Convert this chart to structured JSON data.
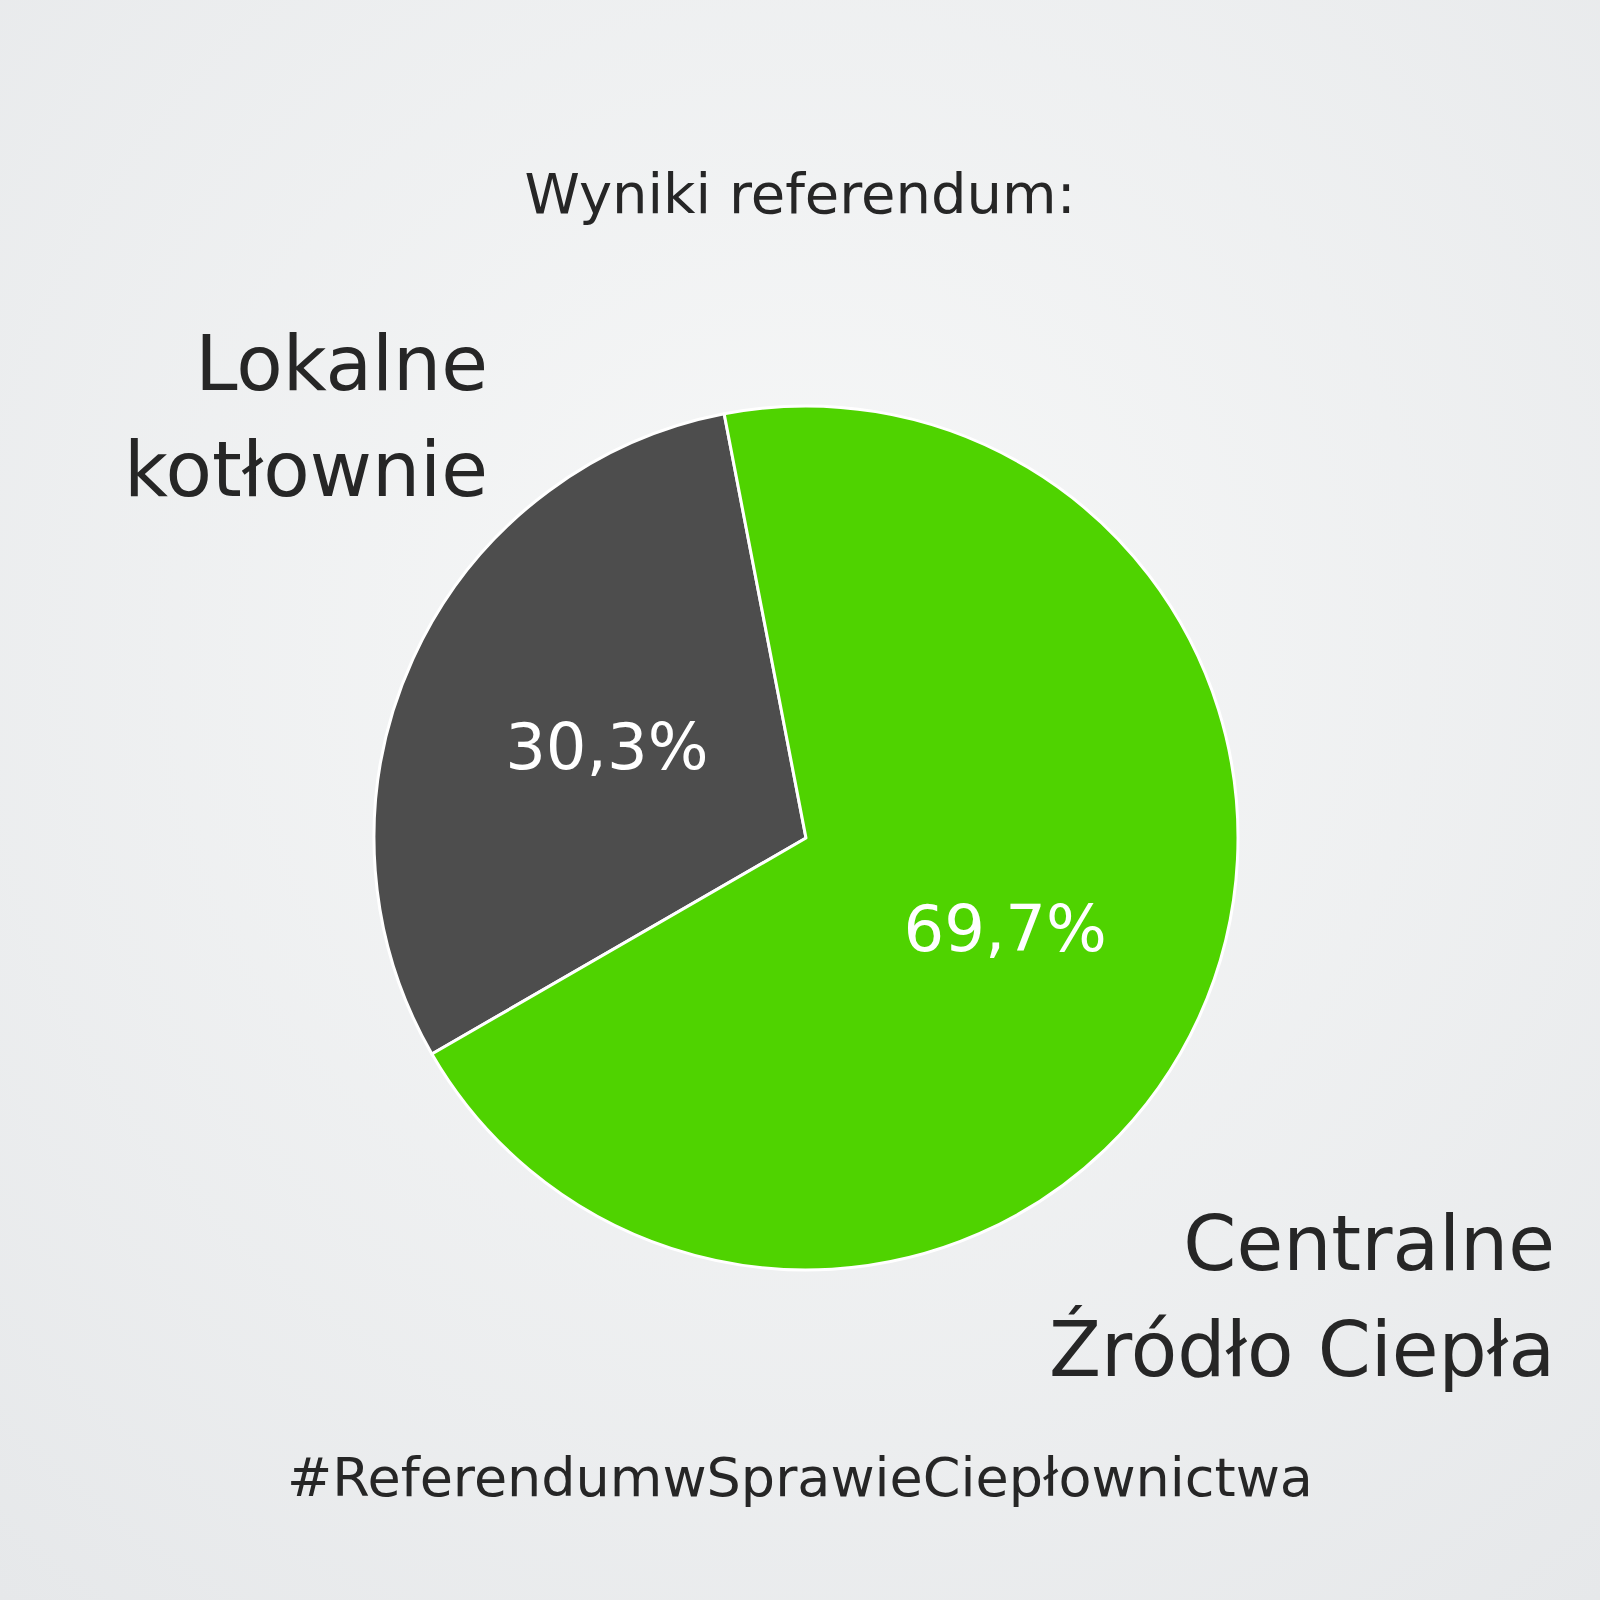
{
  "chart_data": {
    "type": "pie",
    "title": "Wyniki referendum:",
    "categories": [
      "Lokalne kotłownie",
      "Centralne Źródło Ciepła"
    ],
    "values": [
      30.3,
      69.7
    ],
    "colors": [
      "#4d4d4d",
      "#4fd300"
    ],
    "value_labels": [
      "30,3%",
      "69,7%"
    ],
    "legend": false,
    "annotations": [
      "#ReferendumwSprawieCiepłownictwa"
    ]
  }
}
